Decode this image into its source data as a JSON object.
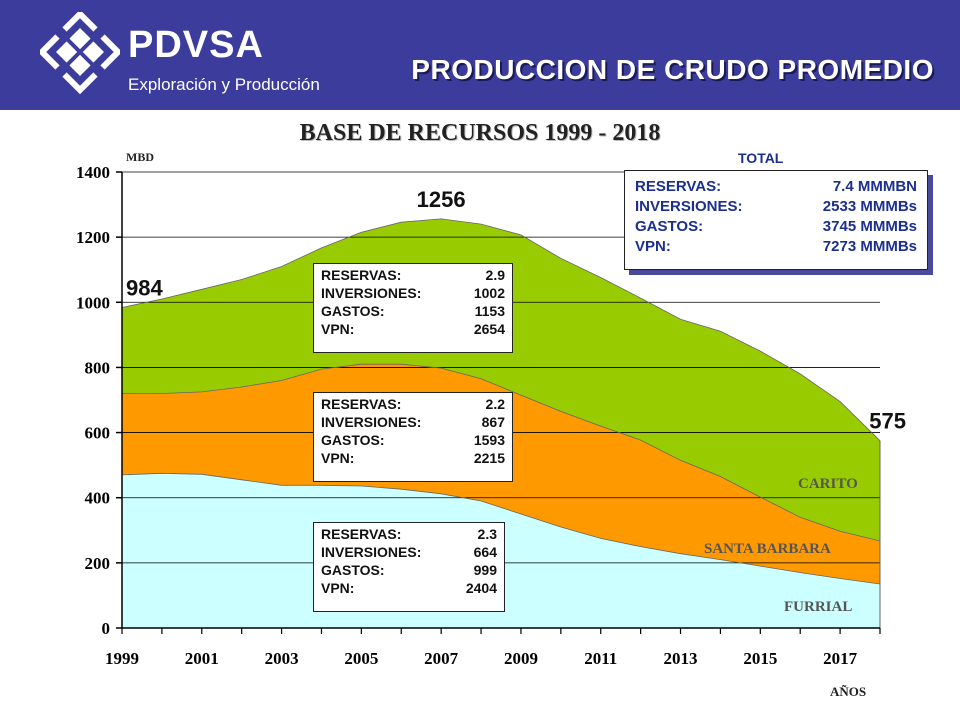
{
  "header": {
    "brand": "PDVSA",
    "subtitle": "Exploración y Producción",
    "title": "PRODUCCION DE CRUDO PROMEDIO"
  },
  "colors": {
    "header_bg": "#3c3c9c",
    "furrial": "#ccffff",
    "santa_barbara": "#ff9900",
    "carito": "#99cc00",
    "total_text": "#1b2f8f"
  },
  "chart_data": {
    "type": "area",
    "stacked": true,
    "title": "BASE DE RECURSOS 1999 - 2018",
    "ylabel": "MBD",
    "xlabel": "AÑOS",
    "ylim": [
      0,
      1400
    ],
    "xlim": [
      1999,
      2018
    ],
    "yticks": [
      0,
      200,
      400,
      600,
      800,
      1000,
      1200,
      1400
    ],
    "xticks": [
      1999,
      2001,
      2003,
      2005,
      2007,
      2009,
      2011,
      2013,
      2015,
      2017
    ],
    "grid": "horizontal",
    "x": [
      1999,
      2000,
      2001,
      2002,
      2003,
      2004,
      2005,
      2006,
      2007,
      2008,
      2009,
      2010,
      2011,
      2012,
      2013,
      2014,
      2015,
      2016,
      2017,
      2018
    ],
    "series": [
      {
        "name": "FURRIAL",
        "values": [
          470,
          475,
          472,
          455,
          438,
          438,
          436,
          426,
          412,
          390,
          350,
          310,
          275,
          250,
          228,
          210,
          190,
          170,
          152,
          135
        ]
      },
      {
        "name": "SANTA BARBARA",
        "values": [
          250,
          245,
          253,
          285,
          322,
          357,
          374,
          384,
          386,
          375,
          365,
          355,
          345,
          327,
          287,
          255,
          212,
          170,
          145,
          132
        ]
      },
      {
        "name": "CARITO",
        "values": [
          264,
          290,
          315,
          330,
          350,
          372,
          405,
          436,
          458,
          475,
          492,
          470,
          456,
          436,
          433,
          446,
          448,
          440,
          398,
          308
        ]
      }
    ],
    "annotations": [
      {
        "label": "984",
        "x": 1999
      },
      {
        "label": "1256",
        "x": 2007
      },
      {
        "label": "575",
        "x": 2018
      }
    ]
  },
  "boxes": {
    "carito": {
      "reservas_label": "RESERVAS:",
      "reservas": "2.9",
      "inversiones_label": "INVERSIONES:",
      "inversiones": "1002",
      "gastos_label": "GASTOS:",
      "gastos": "1153",
      "vpn_label": "VPN:",
      "vpn": "2654"
    },
    "santa_barbara": {
      "reservas_label": "RESERVAS:",
      "reservas": "2.2",
      "inversiones_label": "INVERSIONES:",
      "inversiones": "867",
      "gastos_label": "GASTOS:",
      "gastos": "1593",
      "vpn_label": "VPN:",
      "vpn": "2215"
    },
    "furrial": {
      "reservas_label": "RESERVAS:",
      "reservas": "2.3",
      "inversiones_label": "INVERSIONES:",
      "inversiones": "664",
      "gastos_label": "GASTOS:",
      "gastos": "999",
      "vpn_label": "VPN:",
      "vpn": "2404"
    }
  },
  "total": {
    "heading": "TOTAL",
    "reservas_label": "RESERVAS:",
    "reservas": "7.4 MMMBN",
    "inversiones_label": "INVERSIONES:",
    "inversiones": "2533 MMMBs",
    "gastos_label": "GASTOS:",
    "gastos": "3745 MMMBs",
    "vpn_label": "VPN:",
    "vpn": "7273 MMMBs"
  },
  "region_labels": {
    "carito": "CARITO",
    "santa_barbara": "SANTA BARBARA",
    "furrial": "FURRIAL"
  }
}
